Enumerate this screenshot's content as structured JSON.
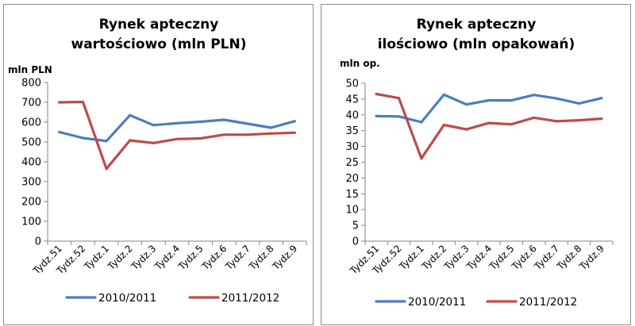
{
  "charts": [
    {
      "title_line1": "Rynek apteczny",
      "title_line2": "wartościowo (mln PLN)",
      "chart_data": {
        "type": "line",
        "title": "Rynek apteczny wartościowo (mln PLN)",
        "ylabel": "mln PLN",
        "xlabel": "",
        "categories": [
          "Tydz.51",
          "Tydz.52",
          "Tydz.1",
          "Tydz.2",
          "Tydz.3",
          "Tydz.4",
          "Tydz.5",
          "Tydz.6",
          "Tydz.7",
          "Tydz.8",
          "Tydz.9"
        ],
        "ylim": [
          0,
          800
        ],
        "yticks": [
          0,
          100,
          200,
          300,
          400,
          500,
          600,
          700,
          800
        ],
        "grid": false,
        "legend": "bottom",
        "series": [
          {
            "name": "2010/2011",
            "color": "#4a7ebb",
            "values": [
              550,
              520,
              505,
              635,
              585,
              595,
              602,
              612,
              592,
              572,
              605
            ]
          },
          {
            "name": "2011/2012",
            "color": "#be4b48",
            "values": [
              700,
              702,
              365,
              508,
              495,
              515,
              518,
              537,
              537,
              543,
              547
            ]
          }
        ]
      }
    },
    {
      "title_line1": "Rynek apteczny",
      "title_line2": "ilościowo (mln opakowań)",
      "chart_data": {
        "type": "line",
        "title": "Rynek apteczny ilościowo (mln opakowań)",
        "ylabel": "mln op.",
        "xlabel": "",
        "categories": [
          "Tydz.51",
          "Tydz.52",
          "Tydz.1",
          "Tydz.2",
          "Tydz.3",
          "Tydz.4",
          "Tydz.5",
          "Tydz.6",
          "Tydz.7",
          "Tydz.8",
          "Tydz.9"
        ],
        "ylim": [
          0,
          50
        ],
        "yticks": [
          0,
          5,
          10,
          15,
          20,
          25,
          30,
          35,
          40,
          45,
          50
        ],
        "grid": false,
        "legend": "bottom",
        "series": [
          {
            "name": "2010/2011",
            "color": "#4a7ebb",
            "values": [
              39.6,
              39.5,
              37.7,
              46.4,
              43.3,
              44.6,
              44.6,
              46.3,
              45.2,
              43.6,
              45.3
            ]
          },
          {
            "name": "2011/2012",
            "color": "#be4b48",
            "values": [
              46.6,
              45.3,
              26.2,
              36.8,
              35.4,
              37.4,
              37.0,
              39.1,
              38.0,
              38.3,
              38.8
            ]
          }
        ]
      }
    }
  ]
}
